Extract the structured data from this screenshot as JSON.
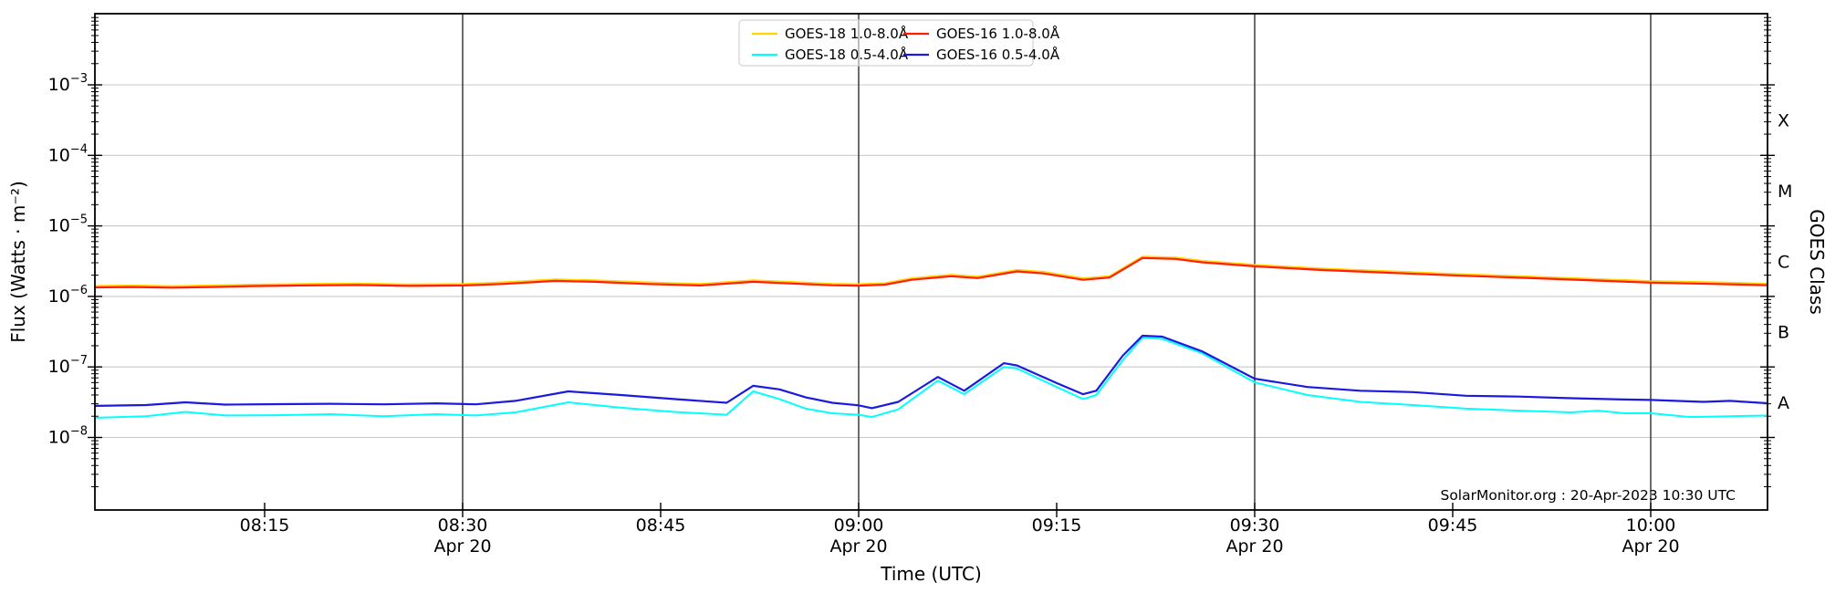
{
  "page": {
    "background": "#ffffff"
  },
  "watermark": "SolarMonitor.org : 20-Apr-2023 10:30 UTC",
  "chart_data": {
    "type": "line",
    "title": "",
    "xlabel": "Time (UTC)",
    "ylabel": "Flux (Watts · m⁻²)",
    "right_axis_label": "GOES Class",
    "grid": "horizontal light gray at each decade; dark vertical lines at 30-min marks",
    "legend_position": "top-center, two columns",
    "x_axis": {
      "unit": "minutes after 08:00 UTC",
      "range_minutes": [
        2,
        129
      ],
      "major_tick_minutes": [
        15,
        30,
        45,
        60,
        75,
        90,
        105,
        120
      ],
      "tick_labels": [
        "08:15",
        "08:30",
        "08:45",
        "09:00",
        "09:15",
        "09:30",
        "09:45",
        "10:00"
      ],
      "date_line_minutes": [
        30,
        60,
        90,
        120
      ],
      "date_label": "Apr 20"
    },
    "y_axis": {
      "scale": "log",
      "range": [
        1e-09,
        0.01
      ],
      "tick_exponents": [
        -3,
        -4,
        -5,
        -6,
        -7,
        -8
      ],
      "tick_label_base": "10",
      "minus": "−"
    },
    "right_axis": {
      "classes": [
        {
          "label": "X",
          "at_flux": 0.000316
        },
        {
          "label": "M",
          "at_flux": 3.16e-05
        },
        {
          "label": "C",
          "at_flux": 3.16e-06
        },
        {
          "label": "B",
          "at_flux": 3.16e-07
        },
        {
          "label": "A",
          "at_flux": 3.16e-08
        }
      ]
    },
    "series": [
      {
        "name": "GOES-18 1.0-8.0Å",
        "color": "#ffd400",
        "width": 2.0,
        "points": [
          [
            2,
            1.41e-06
          ],
          [
            5,
            1.43e-06
          ],
          [
            8,
            1.4e-06
          ],
          [
            11,
            1.43e-06
          ],
          [
            14,
            1.47e-06
          ],
          [
            18,
            1.5e-06
          ],
          [
            22,
            1.52e-06
          ],
          [
            26,
            1.48e-06
          ],
          [
            30,
            1.5e-06
          ],
          [
            33,
            1.58e-06
          ],
          [
            37,
            1.74e-06
          ],
          [
            40,
            1.69e-06
          ],
          [
            44,
            1.58e-06
          ],
          [
            48,
            1.5e-06
          ],
          [
            52,
            1.69e-06
          ],
          [
            55,
            1.6e-06
          ],
          [
            58,
            1.51e-06
          ],
          [
            60,
            1.49e-06
          ],
          [
            62,
            1.54e-06
          ],
          [
            64,
            1.81e-06
          ],
          [
            67,
            2.03e-06
          ],
          [
            69,
            1.91e-06
          ],
          [
            72,
            2.37e-06
          ],
          [
            74,
            2.23e-06
          ],
          [
            77,
            1.81e-06
          ],
          [
            79,
            1.94e-06
          ],
          [
            81.5,
            3.68e-06
          ],
          [
            84,
            3.57e-06
          ],
          [
            86,
            3.2e-06
          ],
          [
            90,
            2.8e-06
          ],
          [
            95,
            2.49e-06
          ],
          [
            100,
            2.28e-06
          ],
          [
            105,
            2.09e-06
          ],
          [
            112,
            1.88e-06
          ],
          [
            120,
            1.65e-06
          ],
          [
            125,
            1.58e-06
          ],
          [
            129,
            1.51e-06
          ]
        ]
      },
      {
        "name": "GOES-18 0.5-4.0Å",
        "color": "#00ffff",
        "width": 2.0,
        "points": [
          [
            2,
            1.9e-08
          ],
          [
            6,
            2e-08
          ],
          [
            9,
            2.3e-08
          ],
          [
            12,
            2.05e-08
          ],
          [
            16,
            2.07e-08
          ],
          [
            20,
            2.14e-08
          ],
          [
            24,
            2e-08
          ],
          [
            28,
            2.14e-08
          ],
          [
            31,
            2.05e-08
          ],
          [
            34,
            2.27e-08
          ],
          [
            38,
            3.15e-08
          ],
          [
            42,
            2.64e-08
          ],
          [
            46,
            2.3e-08
          ],
          [
            50,
            2.1e-08
          ],
          [
            52,
            4.5e-08
          ],
          [
            54,
            3.5e-08
          ],
          [
            56,
            2.56e-08
          ],
          [
            58,
            2.2e-08
          ],
          [
            60,
            2.1e-08
          ],
          [
            61,
            1.95e-08
          ],
          [
            63,
            2.5e-08
          ],
          [
            66,
            6.4e-08
          ],
          [
            68,
            4.1e-08
          ],
          [
            71,
            1e-07
          ],
          [
            72,
            9.5e-08
          ],
          [
            75,
            5.2e-08
          ],
          [
            77,
            3.5e-08
          ],
          [
            78,
            4e-08
          ],
          [
            80,
            1.24e-07
          ],
          [
            81.5,
            2.6e-07
          ],
          [
            83,
            2.5e-07
          ],
          [
            86,
            1.57e-07
          ],
          [
            90,
            6.05e-08
          ],
          [
            94,
            4e-08
          ],
          [
            98,
            3.2e-08
          ],
          [
            102,
            2.88e-08
          ],
          [
            106,
            2.56e-08
          ],
          [
            110,
            2.4e-08
          ],
          [
            114,
            2.27e-08
          ],
          [
            116,
            2.4e-08
          ],
          [
            118,
            2.2e-08
          ],
          [
            120,
            2.2e-08
          ],
          [
            123,
            1.95e-08
          ],
          [
            126,
            2e-08
          ],
          [
            129,
            2.05e-08
          ]
        ]
      },
      {
        "name": "GOES-16 1.0-8.0Å",
        "color": "#ff1e00",
        "width": 2.2,
        "points": [
          [
            2,
            1.34e-06
          ],
          [
            5,
            1.36e-06
          ],
          [
            8,
            1.33e-06
          ],
          [
            11,
            1.36e-06
          ],
          [
            14,
            1.4e-06
          ],
          [
            18,
            1.43e-06
          ],
          [
            22,
            1.45e-06
          ],
          [
            26,
            1.41e-06
          ],
          [
            30,
            1.43e-06
          ],
          [
            33,
            1.5e-06
          ],
          [
            37,
            1.66e-06
          ],
          [
            40,
            1.61e-06
          ],
          [
            44,
            1.5e-06
          ],
          [
            48,
            1.43e-06
          ],
          [
            52,
            1.61e-06
          ],
          [
            55,
            1.52e-06
          ],
          [
            58,
            1.44e-06
          ],
          [
            60,
            1.42e-06
          ],
          [
            62,
            1.47e-06
          ],
          [
            64,
            1.72e-06
          ],
          [
            67,
            1.93e-06
          ],
          [
            69,
            1.82e-06
          ],
          [
            72,
            2.26e-06
          ],
          [
            74,
            2.12e-06
          ],
          [
            77,
            1.72e-06
          ],
          [
            79,
            1.85e-06
          ],
          [
            81.5,
            3.5e-06
          ],
          [
            84,
            3.4e-06
          ],
          [
            86,
            3.05e-06
          ],
          [
            90,
            2.67e-06
          ],
          [
            95,
            2.37e-06
          ],
          [
            100,
            2.17e-06
          ],
          [
            105,
            1.99e-06
          ],
          [
            112,
            1.79e-06
          ],
          [
            120,
            1.57e-06
          ],
          [
            125,
            1.5e-06
          ],
          [
            129,
            1.44e-06
          ]
        ]
      },
      {
        "name": "GOES-16 0.5-4.0Å",
        "color": "#1a1ae0",
        "width": 2.2,
        "points": [
          [
            2,
            2.8e-08
          ],
          [
            6,
            2.88e-08
          ],
          [
            9,
            3.15e-08
          ],
          [
            12,
            2.92e-08
          ],
          [
            16,
            2.97e-08
          ],
          [
            20,
            3e-08
          ],
          [
            24,
            2.95e-08
          ],
          [
            28,
            3.05e-08
          ],
          [
            31,
            2.95e-08
          ],
          [
            34,
            3.3e-08
          ],
          [
            38,
            4.5e-08
          ],
          [
            42,
            4e-08
          ],
          [
            46,
            3.5e-08
          ],
          [
            50,
            3.1e-08
          ],
          [
            52,
            5.4e-08
          ],
          [
            54,
            4.8e-08
          ],
          [
            56,
            3.7e-08
          ],
          [
            58,
            3.1e-08
          ],
          [
            60,
            2.85e-08
          ],
          [
            61,
            2.6e-08
          ],
          [
            63,
            3.2e-08
          ],
          [
            66,
            7.2e-08
          ],
          [
            68,
            4.6e-08
          ],
          [
            71,
            1.13e-07
          ],
          [
            72,
            1.05e-07
          ],
          [
            75,
            5.9e-08
          ],
          [
            77,
            4.1e-08
          ],
          [
            78,
            4.6e-08
          ],
          [
            80,
            1.44e-07
          ],
          [
            81.5,
            2.77e-07
          ],
          [
            83,
            2.69e-07
          ],
          [
            86,
            1.67e-07
          ],
          [
            90,
            6.8e-08
          ],
          [
            94,
            5.2e-08
          ],
          [
            98,
            4.6e-08
          ],
          [
            102,
            4.4e-08
          ],
          [
            106,
            3.9e-08
          ],
          [
            110,
            3.8e-08
          ],
          [
            114,
            3.6e-08
          ],
          [
            118,
            3.45e-08
          ],
          [
            120,
            3.4e-08
          ],
          [
            124,
            3.2e-08
          ],
          [
            126,
            3.3e-08
          ],
          [
            129,
            3.05e-08
          ]
        ]
      }
    ],
    "legend": {
      "columns": [
        [
          "GOES-18 1.0-8.0Å",
          "GOES-18 0.5-4.0Å"
        ],
        [
          "GOES-16 1.0-8.0Å",
          "GOES-16 0.5-4.0Å"
        ]
      ]
    },
    "colors": {
      "grid_light": "#c9c9c9",
      "date_line": "#2e2e2e",
      "axis": "#000000",
      "legend_border": "#d3d3d3"
    }
  }
}
